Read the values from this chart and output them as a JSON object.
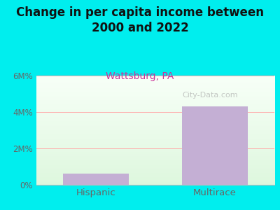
{
  "title": "Change in per capita income between\n2000 and 2022",
  "subtitle": "Wattsburg, PA",
  "categories": [
    "Hispanic",
    "Multirace"
  ],
  "values": [
    600000,
    4300000
  ],
  "bar_color": "#c4afd4",
  "background_color": "#00EEEE",
  "plot_bg_top": "#f5fff5",
  "plot_bg_bottom": "#e0f5e0",
  "title_fontsize": 12,
  "subtitle_fontsize": 10,
  "subtitle_color": "#cc3399",
  "tick_label_color": "#666666",
  "ylim": [
    0,
    6000000
  ],
  "yticks": [
    0,
    2000000,
    4000000,
    6000000
  ],
  "ytick_labels": [
    "0%",
    "2M%",
    "4M%",
    "6M%"
  ],
  "watermark": "City-Data.com",
  "grid_color": "#ffaaaa",
  "bar_width": 0.55
}
